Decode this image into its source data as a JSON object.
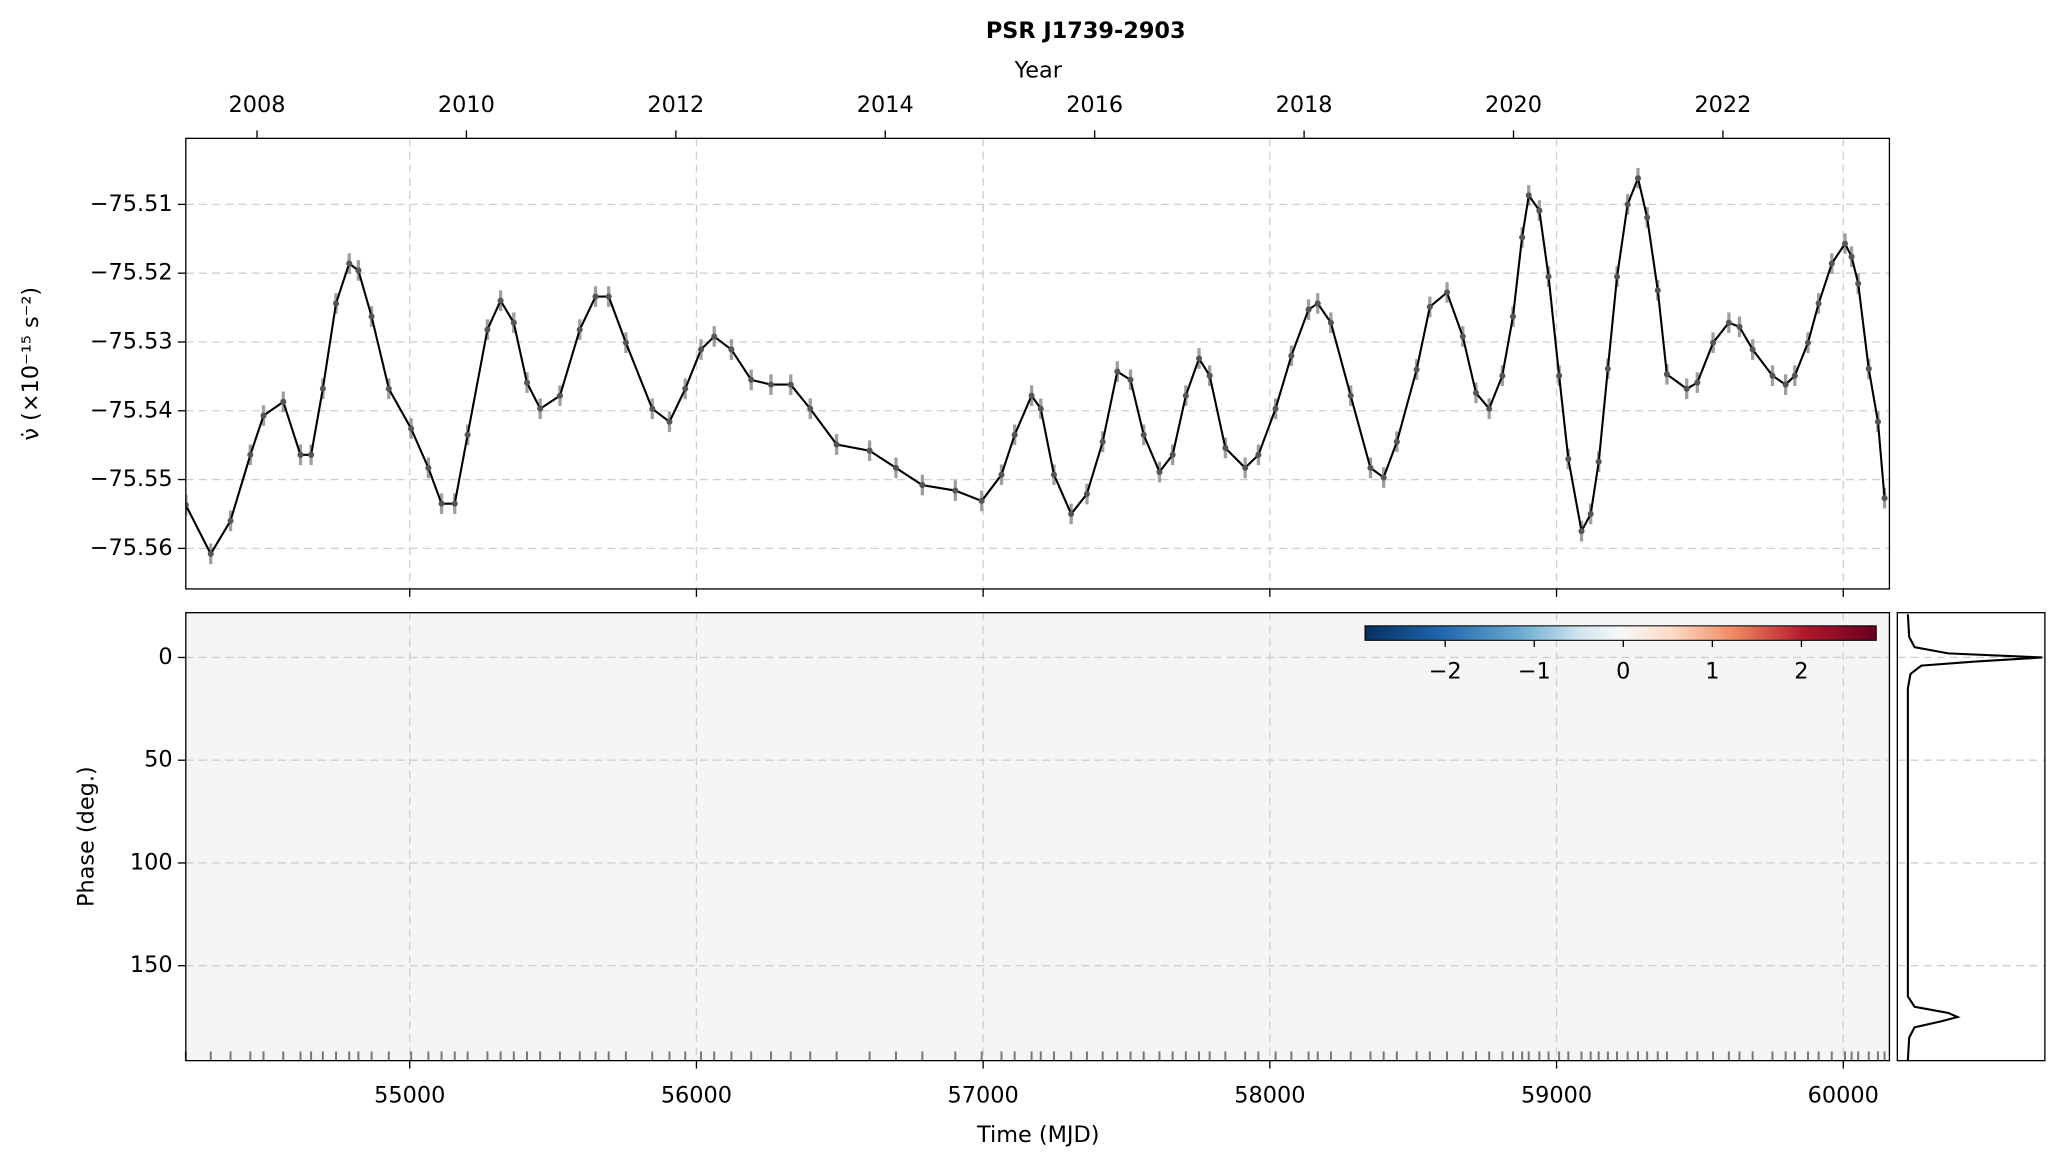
{
  "chart_data": [
    {
      "type": "line",
      "title": "PSR J1739-2903",
      "x2label": "Year",
      "ylabel": "ν̇ (×10⁻¹⁵ s⁻²)",
      "color": "#000000",
      "error_color": "#888888",
      "error": 0.0015,
      "grid": true,
      "x": [
        54219,
        54306,
        54375,
        54444,
        54490,
        54559,
        54619,
        54656,
        54697,
        54743,
        54789,
        54821,
        54867,
        54927,
        55005,
        55065,
        55111,
        55157,
        55202,
        55271,
        55317,
        55363,
        55409,
        55455,
        55524,
        55593,
        55648,
        55694,
        55754,
        55846,
        55906,
        55961,
        56016,
        56062,
        56122,
        56191,
        56260,
        56329,
        56397,
        56489,
        56604,
        56696,
        56788,
        56903,
        56995,
        57064,
        57110,
        57169,
        57201,
        57247,
        57307,
        57362,
        57417,
        57468,
        57514,
        57560,
        57615,
        57661,
        57707,
        57753,
        57790,
        57845,
        57914,
        57960,
        58020,
        58075,
        58135,
        58167,
        58213,
        58282,
        58351,
        58397,
        58443,
        58512,
        58558,
        58618,
        58673,
        58719,
        58765,
        58811,
        58848,
        58880,
        58903,
        58940,
        58972,
        59009,
        59041,
        59087,
        59119,
        59147,
        59179,
        59211,
        59248,
        59284,
        59316,
        59353,
        59385,
        59454,
        59491,
        59546,
        59601,
        59638,
        59684,
        59753,
        59799,
        59831,
        59877,
        59914,
        59960,
        60006,
        60029,
        60052,
        60089,
        60121,
        60144
      ],
      "values": [
        -75.5537,
        -75.5608,
        -75.556,
        -75.5464,
        -75.5407,
        -75.5387,
        -75.5464,
        -75.5464,
        -75.5368,
        -75.5244,
        -75.5186,
        -75.5196,
        -75.5263,
        -75.5368,
        -75.5426,
        -75.5483,
        -75.5535,
        -75.5535,
        -75.5435,
        -75.5282,
        -75.524,
        -75.5272,
        -75.5359,
        -75.5397,
        -75.5378,
        -75.5282,
        -75.5234,
        -75.5234,
        -75.5301,
        -75.5397,
        -75.5416,
        -75.5368,
        -75.5311,
        -75.5292,
        -75.5311,
        -75.5355,
        -75.5362,
        -75.5362,
        -75.5397,
        -75.5449,
        -75.5458,
        -75.5483,
        -75.5508,
        -75.5516,
        -75.5531,
        -75.5493,
        -75.5435,
        -75.5378,
        -75.5397,
        -75.5493,
        -75.555,
        -75.5521,
        -75.5445,
        -75.5343,
        -75.5355,
        -75.5435,
        -75.5489,
        -75.5464,
        -75.5378,
        -75.5324,
        -75.5349,
        -75.5454,
        -75.5483,
        -75.5464,
        -75.5397,
        -75.532,
        -75.5253,
        -75.5244,
        -75.5272,
        -75.5378,
        -75.5483,
        -75.5497,
        -75.5445,
        -75.534,
        -75.5249,
        -75.5228,
        -75.5292,
        -75.5374,
        -75.5397,
        -75.5349,
        -75.5263,
        -75.5148,
        -75.5087,
        -75.5109,
        -75.5205,
        -75.5349,
        -75.547,
        -75.5575,
        -75.555,
        -75.5474,
        -75.5339,
        -75.5205,
        -75.51,
        -75.5062,
        -75.5119,
        -75.5225,
        -75.5347,
        -75.5368,
        -75.5359,
        -75.5301,
        -75.5272,
        -75.5278,
        -75.5311,
        -75.5349,
        -75.5362,
        -75.5349,
        -75.5301,
        -75.5244,
        -75.5186,
        -75.5157,
        -75.5176,
        -75.5215,
        -75.5339,
        -75.5416,
        -75.5527
      ],
      "xlim": [
        54219,
        60161
      ],
      "xticks": [
        55000,
        56000,
        57000,
        58000,
        59000,
        60000
      ],
      "x2lim": [
        2007.32,
        2023.59
      ],
      "x2ticks": [
        2008,
        2010,
        2012,
        2014,
        2016,
        2018,
        2020,
        2022
      ],
      "ylim": [
        -75.5659,
        -75.5004
      ],
      "yticks": [
        {
          "value": -75.56,
          "label": "−75.56"
        },
        {
          "value": -75.55,
          "label": "−75.55"
        },
        {
          "value": -75.54,
          "label": "−75.54"
        },
        {
          "value": -75.53,
          "label": "−75.53"
        },
        {
          "value": -75.52,
          "label": "−75.52"
        },
        {
          "value": -75.51,
          "label": "−75.51"
        }
      ]
    },
    {
      "type": "heatmap",
      "xlabel": "Time (MJD)",
      "ylabel": "Phase (deg.)",
      "colormap": "RdBu_r",
      "grid": true,
      "xlim": [
        54219,
        60161
      ],
      "xticks": [
        55000,
        56000,
        57000,
        58000,
        59000,
        60000
      ],
      "ylim": [
        196.2,
        -21.8
      ],
      "yticks": [
        0,
        50,
        100,
        150
      ],
      "clim": [
        -2.9,
        2.84
      ],
      "cticks": [
        {
          "value": -2,
          "label": "−2"
        },
        {
          "value": -1,
          "label": "−1"
        },
        0,
        1,
        2
      ],
      "profile": {
        "xlim": [
          -0.078,
          1.02
        ],
        "phase": [
          -21,
          -10,
          -5,
          -2,
          0,
          2,
          4,
          8,
          15,
          100,
          165,
          170,
          173,
          175,
          177,
          180,
          185,
          196
        ],
        "values": [
          0,
          0.01,
          0.05,
          0.3,
          1,
          0.5,
          0.1,
          0.02,
          0,
          0,
          0,
          0.05,
          0.3,
          0.37,
          0.25,
          0.05,
          0.01,
          0
        ]
      }
    }
  ]
}
